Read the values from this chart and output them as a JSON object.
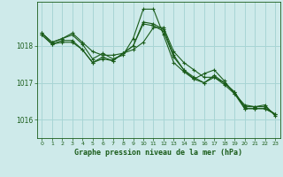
{
  "background_color": "#ceeaea",
  "grid_color": "#a8d5d5",
  "line_color": "#1a5c1a",
  "title": "Graphe pression niveau de la mer (hPa)",
  "ylim": [
    1015.5,
    1019.2
  ],
  "xlim": [
    -0.5,
    23.5
  ],
  "yticks": [
    1016,
    1017,
    1018
  ],
  "xticks": [
    0,
    1,
    2,
    3,
    4,
    5,
    6,
    7,
    8,
    9,
    10,
    11,
    12,
    13,
    14,
    15,
    16,
    17,
    18,
    19,
    20,
    21,
    22,
    23
  ],
  "series": [
    [
      1018.35,
      1018.1,
      1018.2,
      1018.3,
      1018.05,
      1017.65,
      1017.8,
      1017.65,
      1017.75,
      1018.2,
      1019.0,
      1019.0,
      1018.3,
      1017.55,
      1017.3,
      1017.1,
      1017.25,
      1017.35,
      1017.05,
      1016.7,
      1016.4,
      1016.35,
      1016.4,
      1016.1
    ],
    [
      1018.3,
      1018.05,
      1018.1,
      1018.1,
      1017.9,
      1017.55,
      1017.65,
      1017.6,
      1017.8,
      1018.0,
      1018.65,
      1018.6,
      1018.45,
      1017.75,
      1017.35,
      1017.15,
      1017.0,
      1017.2,
      1017.0,
      1016.75,
      1016.3,
      1016.3,
      1016.3,
      1016.15
    ],
    [
      1018.3,
      1018.05,
      1018.15,
      1018.15,
      1017.9,
      1017.55,
      1017.7,
      1017.6,
      1017.8,
      1018.0,
      1018.6,
      1018.55,
      1018.4,
      1017.7,
      1017.35,
      1017.1,
      1017.0,
      1017.15,
      1016.95,
      1016.7,
      1016.3,
      1016.3,
      1016.3,
      1016.15
    ],
    [
      1018.35,
      1018.1,
      1018.2,
      1018.35,
      1018.1,
      1017.85,
      1017.75,
      1017.75,
      1017.8,
      1017.9,
      1018.1,
      1018.5,
      1018.5,
      1017.85,
      1017.55,
      1017.35,
      1017.15,
      1017.15,
      1017.0,
      1016.75,
      1016.35,
      1016.35,
      1016.35,
      1016.15
    ]
  ]
}
